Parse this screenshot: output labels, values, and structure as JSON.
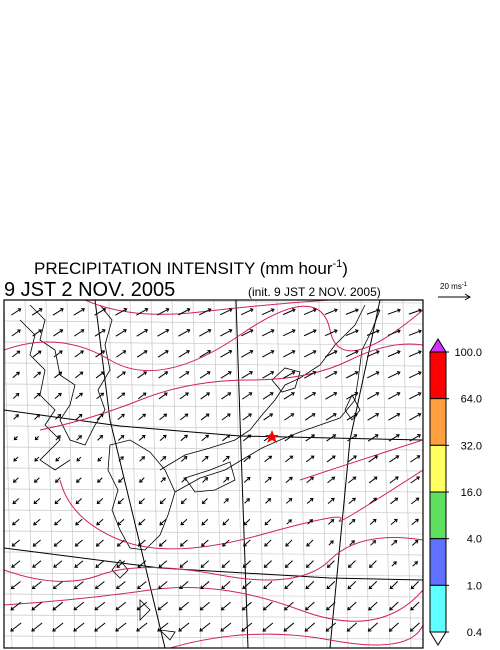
{
  "title": {
    "main": "PRECIPITATION INTENSITY (mm hour",
    "superscript": "-1",
    "close": ")"
  },
  "valid_time": "9 JST 2 NOV. 2005",
  "init_time": "(init. 9 JST 2 NOV. 2005)",
  "wind_scale": {
    "label": "20 ms",
    "superscript": "-1"
  },
  "colorbar": {
    "ticks": [
      {
        "value": 100,
        "label": "100.0"
      },
      {
        "value": 64,
        "label": "64.0"
      },
      {
        "value": 32,
        "label": "32.0"
      },
      {
        "value": 16,
        "label": "16.0"
      },
      {
        "value": 4,
        "label": "4.0"
      },
      {
        "value": 1,
        "label": "1.0"
      },
      0.4
    ],
    "colors": [
      "#cc33ff",
      "#ff0000",
      "#ffa040",
      "#ffff60",
      "#60e060",
      "#6070ff",
      "#60ffff",
      "#ffffff"
    ]
  }
}
